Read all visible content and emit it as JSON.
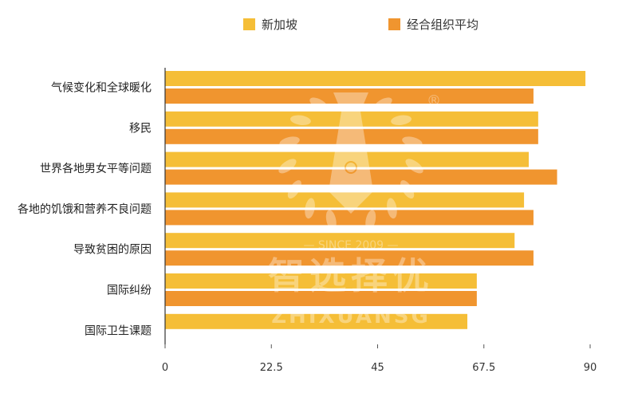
{
  "chart_data": {
    "type": "bar",
    "orientation": "horizontal",
    "categories": [
      "气候变化和全球暖化",
      "移民",
      "世界各地男女平等问题",
      "各地的饥饿和营养不良问题",
      "导致贫困的原因",
      "国际纠纷",
      "国际卫生课题"
    ],
    "series": [
      {
        "name": "新加坡",
        "color": "#F5BE37",
        "values": [
          89,
          79,
          77,
          76,
          74,
          66,
          64
        ]
      },
      {
        "name": "经合组织平均",
        "color": "#F0952F",
        "values": [
          78,
          79,
          83,
          78,
          78,
          66,
          null
        ]
      }
    ],
    "xlim": [
      0,
      90
    ],
    "xticks": [
      "0",
      "22.5",
      "45",
      "67.5",
      "90"
    ],
    "tick_values": [
      0,
      22.5,
      45,
      67.5,
      90
    ],
    "legend_position": "top-center",
    "grid": false
  },
  "watermark": {
    "chinese": "智选择优",
    "latin": "ZHIXUANSG",
    "since": "— SINCE 2009 —",
    "registered": "®"
  }
}
